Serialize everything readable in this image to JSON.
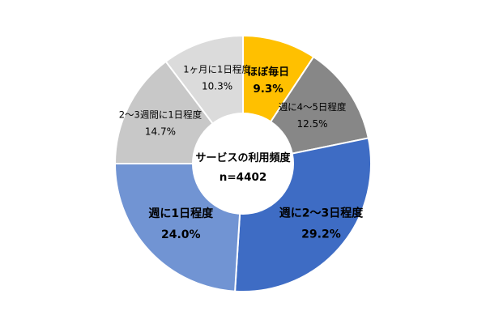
{
  "chart_data": {
    "type": "donut",
    "center_title": "サービスの利用頻度",
    "center_n": "n=4402",
    "slices": [
      {
        "category": "ほぼ毎日",
        "value": 9.3,
        "value_label": "9.3%",
        "color": "#FFC000",
        "bold": true
      },
      {
        "category": "週に4～5日程度",
        "value": 12.5,
        "value_label": "12.5%",
        "color": "#878787",
        "bold": false
      },
      {
        "category": "週に2～3日程度",
        "value": 29.2,
        "value_label": "29.2%",
        "color": "#3E6CC4",
        "bold": true
      },
      {
        "category": "週に1日程度",
        "value": 24.0,
        "value_label": "24.0%",
        "color": "#7194D3",
        "bold": true
      },
      {
        "category": "2～3週間に1日程度",
        "value": 14.7,
        "value_label": "14.7%",
        "color": "#C8C8C8",
        "bold": false
      },
      {
        "category": "1ヶ月に1日程度",
        "value": 10.3,
        "value_label": "10.3%",
        "color": "#DBDBDB",
        "bold": false
      }
    ]
  }
}
